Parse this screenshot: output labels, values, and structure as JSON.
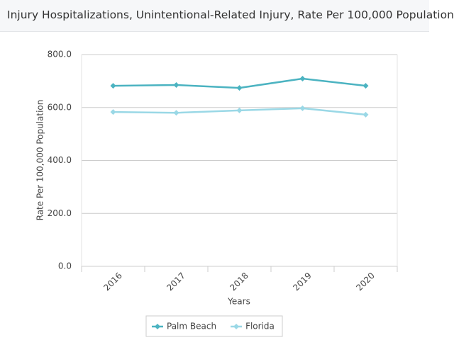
{
  "chart_data": {
    "type": "line",
    "title": "Injury Hospitalizations, Unintentional-Related Injury, Rate Per 100,000 Population",
    "x_label": "Years",
    "y_label": "Rate Per 100,000 Population",
    "categories": [
      "2016",
      "2017",
      "2018",
      "2019",
      "2020"
    ],
    "series": [
      {
        "name": "Palm Beach",
        "color": "#4bb3c1",
        "values": [
          682,
          685,
          674,
          709,
          682
        ]
      },
      {
        "name": "Florida",
        "color": "#9ad8e6",
        "values": [
          583,
          580,
          589,
          597,
          573
        ]
      }
    ],
    "ylim": [
      0,
      800
    ],
    "yticks": [
      {
        "value": 0,
        "label": "0.0"
      },
      {
        "value": 200,
        "label": "200.0"
      },
      {
        "value": 400,
        "label": "400.0"
      },
      {
        "value": 600,
        "label": "600.0"
      },
      {
        "value": 800,
        "label": "800.0"
      }
    ],
    "grid": true,
    "legend": "bottom"
  }
}
